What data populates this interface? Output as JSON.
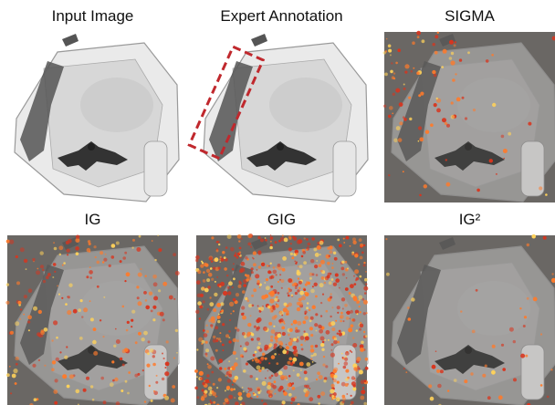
{
  "panels": [
    {
      "title": "Input Image"
    },
    {
      "title": "Expert Annotation"
    },
    {
      "title": "SIGMA"
    },
    {
      "title": "IG"
    },
    {
      "title": "GIG"
    },
    {
      "title": "IG²"
    }
  ]
}
